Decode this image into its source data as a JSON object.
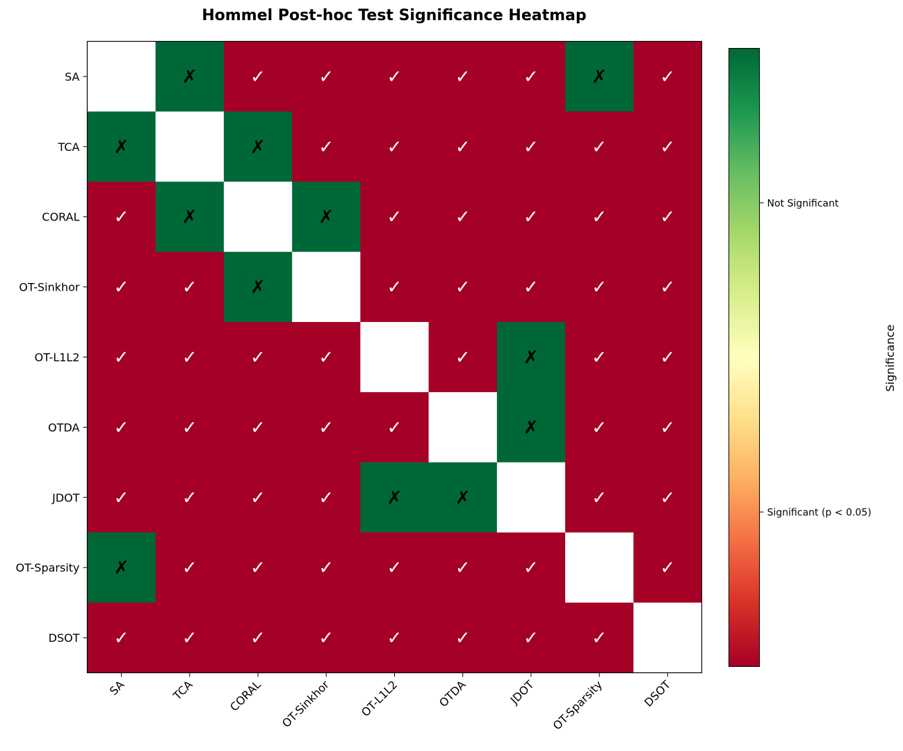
{
  "chart_data": {
    "type": "heatmap",
    "title": "Hommel Post-hoc Test Significance Heatmap",
    "rows": [
      "SA",
      "TCA",
      "CORAL",
      "OT-Sinkhor",
      "OT-L1L2",
      "OTDA",
      "JDOT",
      "OT-Sparsity",
      "DSOT"
    ],
    "columns": [
      "SA",
      "TCA",
      "CORAL",
      "OT-Sinkhor",
      "OT-L1L2",
      "OTDA",
      "JDOT",
      "OT-Sparsity",
      "DSOT"
    ],
    "matrix": [
      [
        null,
        1,
        0,
        0,
        0,
        0,
        0,
        1,
        0
      ],
      [
        1,
        null,
        1,
        0,
        0,
        0,
        0,
        0,
        0
      ],
      [
        0,
        1,
        null,
        1,
        0,
        0,
        0,
        0,
        0
      ],
      [
        0,
        0,
        1,
        null,
        0,
        0,
        0,
        0,
        0
      ],
      [
        0,
        0,
        0,
        0,
        null,
        0,
        1,
        0,
        0
      ],
      [
        0,
        0,
        0,
        0,
        0,
        null,
        1,
        0,
        0
      ],
      [
        0,
        0,
        0,
        0,
        1,
        1,
        null,
        0,
        0
      ],
      [
        1,
        0,
        0,
        0,
        0,
        0,
        0,
        null,
        0
      ],
      [
        0,
        0,
        0,
        0,
        0,
        0,
        0,
        0,
        null
      ]
    ],
    "value_encoding": {
      "0": "Significant (p < 0.05)",
      "1": "Not Significant"
    },
    "cell_marks": {
      "significant": "✓",
      "not_significant": "✗"
    },
    "colorbar": {
      "label": "Significance",
      "colormap": "RdYlGn",
      "ticks": [
        {
          "value": 0.25,
          "label": "Significant (p < 0.05)"
        },
        {
          "value": 0.75,
          "label": "Not Significant"
        }
      ],
      "range": [
        0,
        1
      ]
    },
    "colors": {
      "significant": "#a50026",
      "not_significant": "#006837",
      "diagonal": "#ffffff",
      "mark_on_significant": "#ffffff",
      "mark_on_not_significant": "#000000",
      "colormap_stops": [
        "#a50026",
        "#d73027",
        "#f46d43",
        "#fdae61",
        "#fee08b",
        "#ffffbf",
        "#d9ef8b",
        "#a6d96a",
        "#66bd63",
        "#1a9850",
        "#006837"
      ]
    }
  }
}
